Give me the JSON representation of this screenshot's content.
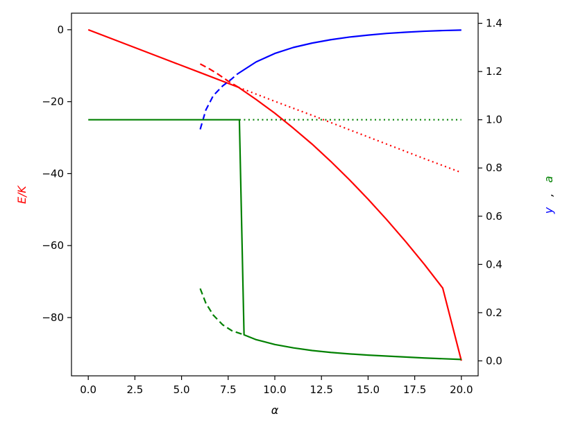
{
  "chart_data": {
    "type": "line",
    "xlabel": "α",
    "ylabel_left": "E/K",
    "ylabel_right_parts": [
      {
        "text": "y",
        "color": "#0000ff"
      },
      {
        "text": ",",
        "color": "#000000"
      },
      {
        "text": "a",
        "color": "#008000"
      }
    ],
    "xlim": [
      -0.9,
      20.9
    ],
    "ylim_left": [
      -96.2,
      4.6
    ],
    "ylim_right": [
      -0.062,
      1.442
    ],
    "x_ticks": [
      0,
      2.5,
      5,
      7.5,
      10,
      12.5,
      15,
      17.5,
      20
    ],
    "x_tick_labels": [
      "0.0",
      "2.5",
      "5.0",
      "7.5",
      "10.0",
      "12.5",
      "15.0",
      "17.5",
      "20.0"
    ],
    "y_left_ticks": [
      0,
      -20,
      -40,
      -60,
      -80
    ],
    "y_left_tick_labels": [
      "0",
      "−20",
      "−40",
      "−60",
      "−80"
    ],
    "y_right_ticks": [
      0,
      0.2,
      0.4,
      0.6,
      0.8,
      1.0,
      1.2,
      1.4
    ],
    "y_right_tick_labels": [
      "0.0",
      "0.2",
      "0.4",
      "0.6",
      "0.8",
      "1.0",
      "1.2",
      "1.4"
    ],
    "grid": false,
    "series": [
      {
        "axis": "left",
        "color": "#ff0000",
        "style": "solid",
        "x": [
          0,
          2,
          4,
          6,
          8.05,
          9,
          10,
          11,
          12,
          13,
          14,
          15,
          16,
          17,
          18,
          19,
          20
        ],
        "y": [
          0,
          -3.97,
          -7.95,
          -11.92,
          -16.0,
          -19.4,
          -23.2,
          -27.4,
          -31.8,
          -36.6,
          -41.7,
          -47.1,
          -52.8,
          -58.8,
          -65.1,
          -71.8,
          -92.0
        ]
      },
      {
        "axis": "left",
        "color": "#ff0000",
        "style": "dashed",
        "x": [
          6,
          6.5,
          7,
          7.5,
          8.05
        ],
        "y": [
          -9.5,
          -10.9,
          -12.5,
          -14.3,
          -16.0
        ]
      },
      {
        "axis": "left",
        "color": "#ff0000",
        "style": "dotted",
        "x": [
          8.05,
          10,
          12,
          14,
          16,
          18,
          20
        ],
        "y": [
          -16.0,
          -19.9,
          -23.8,
          -27.8,
          -31.8,
          -35.8,
          -39.7
        ]
      },
      {
        "axis": "right",
        "color": "#0000ff",
        "style": "dashed",
        "x": [
          6,
          6.3,
          6.7,
          7.2,
          7.7,
          8.0
        ],
        "y": [
          0.96,
          1.04,
          1.1,
          1.14,
          1.17,
          1.19
        ]
      },
      {
        "axis": "right",
        "color": "#0000ff",
        "style": "solid",
        "x": [
          8.0,
          9,
          10,
          11,
          12,
          13,
          14,
          15,
          16,
          17,
          18,
          19,
          20
        ],
        "y": [
          1.19,
          1.24,
          1.275,
          1.3,
          1.318,
          1.332,
          1.343,
          1.351,
          1.358,
          1.363,
          1.367,
          1.37,
          1.372
        ]
      },
      {
        "axis": "right",
        "color": "#008000",
        "style": "solid",
        "x": [
          0,
          8.1,
          8.35,
          8.35,
          9,
          10,
          11,
          12,
          13,
          14,
          15,
          16,
          17,
          18,
          19,
          20
        ],
        "y": [
          1.0,
          1.0,
          0.108,
          0.108,
          0.088,
          0.068,
          0.054,
          0.043,
          0.035,
          0.029,
          0.024,
          0.02,
          0.016,
          0.012,
          0.009,
          0.006
        ]
      },
      {
        "axis": "right",
        "color": "#008000",
        "style": "dashed",
        "x": [
          6,
          6.3,
          6.7,
          7.2,
          7.7,
          8.35
        ],
        "y": [
          0.3,
          0.24,
          0.19,
          0.15,
          0.125,
          0.108
        ]
      },
      {
        "axis": "right",
        "color": "#008000",
        "style": "dotted",
        "x": [
          8.1,
          12,
          16,
          20
        ],
        "y": [
          1.0,
          1.0,
          1.0,
          1.0
        ]
      }
    ]
  }
}
